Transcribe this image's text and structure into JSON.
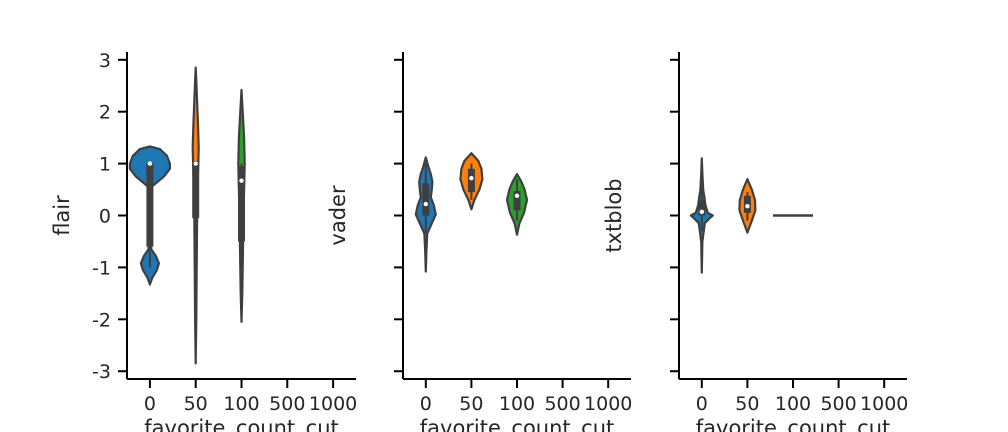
{
  "chart_data": [
    {
      "type": "violin",
      "xlabel": "favorite_count_cut",
      "ylabel": "flair",
      "categories": [
        "0",
        "50",
        "100",
        "500",
        "1000"
      ],
      "ylim": [
        -3.15,
        3.15
      ],
      "yticks": [
        -3,
        -2,
        -1,
        0,
        1,
        2,
        3
      ],
      "series": [
        {
          "category": "0",
          "color": "#1f77b4",
          "box": {
            "q1": -0.6,
            "median": 1.0,
            "q3": 1.0
          },
          "whisker": [
            -1.0,
            1.0
          ],
          "profile": [
            [
              -1.33,
              0.0
            ],
            [
              -1.2,
              0.12
            ],
            [
              -1.05,
              0.35
            ],
            [
              -0.92,
              0.45
            ],
            [
              -0.78,
              0.3
            ],
            [
              -0.65,
              0.07
            ],
            [
              -0.4,
              0.05
            ],
            [
              0.0,
              0.05
            ],
            [
              0.3,
              0.05
            ],
            [
              0.55,
              0.08
            ],
            [
              0.75,
              0.7
            ],
            [
              0.9,
              1.0
            ],
            [
              1.0,
              1.0
            ],
            [
              1.15,
              0.85
            ],
            [
              1.28,
              0.5
            ],
            [
              1.33,
              0.0
            ]
          ]
        },
        {
          "category": "50",
          "color": "#ff7f0e",
          "box": {
            "q1": -0.05,
            "median": 1.0,
            "q3": 1.05
          },
          "whisker": [
            -1.0,
            1.0
          ],
          "profile": [
            [
              -2.85,
              0.0
            ],
            [
              -2.0,
              0.03
            ],
            [
              -1.0,
              0.05
            ],
            [
              0.0,
              0.07
            ],
            [
              0.5,
              0.09
            ],
            [
              1.0,
              0.13
            ],
            [
              1.3,
              0.15
            ],
            [
              1.7,
              0.12
            ],
            [
              2.2,
              0.07
            ],
            [
              2.6,
              0.03
            ],
            [
              2.85,
              0.0
            ]
          ]
        },
        {
          "category": "100",
          "color": "#2ca02c",
          "box": {
            "q1": -0.5,
            "median": 0.67,
            "q3": 0.95
          },
          "whisker": [
            -1.0,
            1.0
          ],
          "profile": [
            [
              -2.05,
              0.0
            ],
            [
              -1.5,
              0.04
            ],
            [
              -1.0,
              0.06
            ],
            [
              -0.5,
              0.08
            ],
            [
              0.0,
              0.1
            ],
            [
              0.5,
              0.13
            ],
            [
              1.0,
              0.16
            ],
            [
              1.5,
              0.13
            ],
            [
              2.0,
              0.06
            ],
            [
              2.42,
              0.0
            ]
          ]
        }
      ]
    },
    {
      "type": "violin",
      "xlabel": "favorite_count_cut",
      "ylabel": "vader",
      "categories": [
        "0",
        "50",
        "100",
        "500",
        "1000"
      ],
      "ylim": [
        -3.15,
        3.15
      ],
      "yticks": [
        -3,
        -2,
        -1,
        0,
        1,
        2,
        3
      ],
      "series": [
        {
          "category": "0",
          "color": "#1f77b4",
          "box": {
            "q1": 0.0,
            "median": 0.22,
            "q3": 0.62
          },
          "whisker": [
            -0.35,
            1.0
          ],
          "profile": [
            [
              -1.08,
              0.0
            ],
            [
              -0.7,
              0.03
            ],
            [
              -0.35,
              0.07
            ],
            [
              -0.15,
              0.3
            ],
            [
              0.02,
              0.5
            ],
            [
              0.2,
              0.4
            ],
            [
              0.35,
              0.25
            ],
            [
              0.5,
              0.3
            ],
            [
              0.65,
              0.33
            ],
            [
              0.8,
              0.25
            ],
            [
              0.95,
              0.12
            ],
            [
              1.12,
              0.0
            ]
          ]
        },
        {
          "category": "50",
          "color": "#ff7f0e",
          "box": {
            "q1": 0.45,
            "median": 0.72,
            "q3": 0.9
          },
          "whisker": [
            0.3,
            1.0
          ],
          "profile": [
            [
              0.12,
              0.0
            ],
            [
              0.3,
              0.15
            ],
            [
              0.5,
              0.4
            ],
            [
              0.7,
              0.55
            ],
            [
              0.9,
              0.5
            ],
            [
              1.05,
              0.35
            ],
            [
              1.2,
              0.0
            ]
          ]
        },
        {
          "category": "100",
          "color": "#2ca02c",
          "box": {
            "q1": 0.1,
            "median": 0.38,
            "q3": 0.47
          },
          "whisker": [
            -0.1,
            0.7
          ],
          "profile": [
            [
              -0.37,
              0.0
            ],
            [
              -0.15,
              0.12
            ],
            [
              0.05,
              0.35
            ],
            [
              0.3,
              0.5
            ],
            [
              0.5,
              0.38
            ],
            [
              0.65,
              0.22
            ],
            [
              0.8,
              0.0
            ]
          ]
        }
      ]
    },
    {
      "type": "violin",
      "xlabel": "favorite_count_cut",
      "ylabel": "txtblob",
      "categories": [
        "0",
        "50",
        "100",
        "500",
        "1000"
      ],
      "ylim": [
        -3.15,
        3.15
      ],
      "yticks": [
        -3,
        -2,
        -1,
        0,
        1,
        2,
        3
      ],
      "series": [
        {
          "category": "0",
          "color": "#1f77b4",
          "box": {
            "q1": 0.0,
            "median": 0.07,
            "q3": 0.3
          },
          "whisker": [
            -0.3,
            0.6
          ],
          "profile": [
            [
              -1.1,
              0.0
            ],
            [
              -0.5,
              0.03
            ],
            [
              -0.15,
              0.15
            ],
            [
              -0.05,
              0.4
            ],
            [
              0.0,
              0.55
            ],
            [
              0.05,
              0.3
            ],
            [
              0.2,
              0.18
            ],
            [
              0.35,
              0.13
            ],
            [
              0.5,
              0.07
            ],
            [
              0.8,
              0.03
            ],
            [
              1.1,
              0.0
            ]
          ]
        },
        {
          "category": "50",
          "color": "#ff7f0e",
          "box": {
            "q1": 0.05,
            "median": 0.18,
            "q3": 0.38
          },
          "whisker": [
            -0.1,
            0.45
          ],
          "profile": [
            [
              -0.33,
              0.0
            ],
            [
              -0.1,
              0.22
            ],
            [
              0.1,
              0.4
            ],
            [
              0.3,
              0.38
            ],
            [
              0.5,
              0.22
            ],
            [
              0.7,
              0.0
            ]
          ]
        },
        {
          "category": "100",
          "color": "#2ca02c",
          "flat_line": 0.0
        }
      ]
    }
  ]
}
